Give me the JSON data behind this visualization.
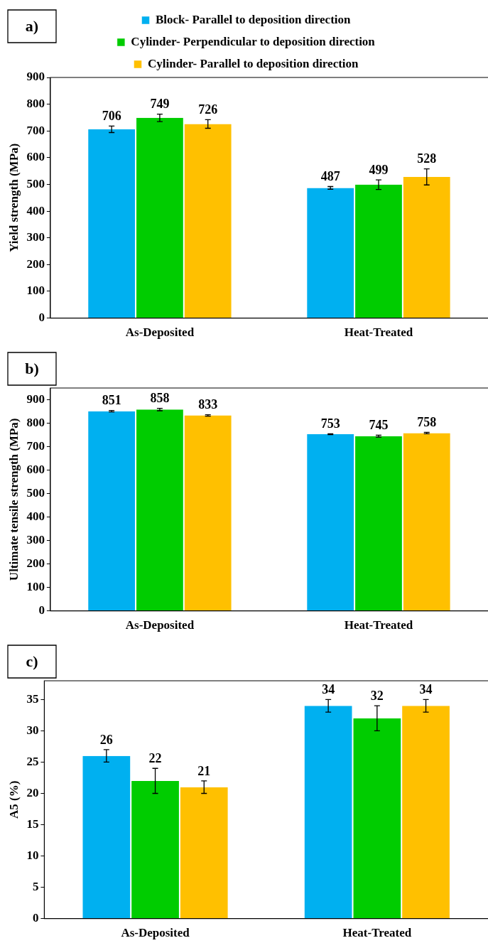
{
  "chart_data": [
    {
      "type": "bar",
      "title": "a)",
      "ylabel": "Yield strength (MPa)",
      "categories": [
        "As-Deposited",
        "Heat-Treated"
      ],
      "series": [
        {
          "name": "Block- Parallel to deposition direction",
          "color": "#00b0f0",
          "values": [
            706,
            487
          ],
          "errors": [
            12,
            5
          ]
        },
        {
          "name": "Cylinder- Perpendicular to deposition direction",
          "color": "#00cc00",
          "values": [
            749,
            499
          ],
          "errors": [
            14,
            18
          ]
        },
        {
          "name": "Cylinder- Parallel to deposition direction",
          "color": "#ffc000",
          "values": [
            726,
            528
          ],
          "errors": [
            16,
            30
          ]
        }
      ],
      "ylim": [
        0,
        900
      ],
      "yticks": [
        0,
        100,
        200,
        300,
        400,
        500,
        600,
        700,
        800,
        900
      ],
      "grid": false,
      "legend": "top",
      "data_labels": true
    },
    {
      "type": "bar",
      "title": "b)",
      "ylabel": "Ultimate tensile strength (MPa)",
      "categories": [
        "As-Deposited",
        "Heat-Treated"
      ],
      "series": [
        {
          "color": "#00b0f0",
          "values": [
            851,
            753
          ],
          "errors": [
            3,
            2
          ]
        },
        {
          "color": "#00cc00",
          "values": [
            858,
            745
          ],
          "errors": [
            5,
            4
          ]
        },
        {
          "color": "#ffc000",
          "values": [
            833,
            758
          ],
          "errors": [
            3,
            3
          ]
        }
      ],
      "ylim": [
        0,
        950
      ],
      "yticks": [
        0,
        100,
        200,
        300,
        400,
        500,
        600,
        700,
        800,
        900
      ],
      "grid": false,
      "legend": false,
      "data_labels": true
    },
    {
      "type": "bar",
      "title": "c)",
      "ylabel": "A5 (%)",
      "categories": [
        "As-Deposited",
        "Heat-Treated"
      ],
      "series": [
        {
          "color": "#00b0f0",
          "values": [
            26,
            34
          ],
          "errors": [
            1,
            1
          ]
        },
        {
          "color": "#00cc00",
          "values": [
            22,
            32
          ],
          "errors": [
            2,
            2
          ]
        },
        {
          "color": "#ffc000",
          "values": [
            21,
            34
          ],
          "errors": [
            1,
            1
          ]
        }
      ],
      "ylim": [
        0,
        38
      ],
      "yticks": [
        0,
        5,
        10,
        15,
        20,
        25,
        30,
        35
      ],
      "grid": false,
      "legend": false,
      "data_labels": true
    }
  ]
}
